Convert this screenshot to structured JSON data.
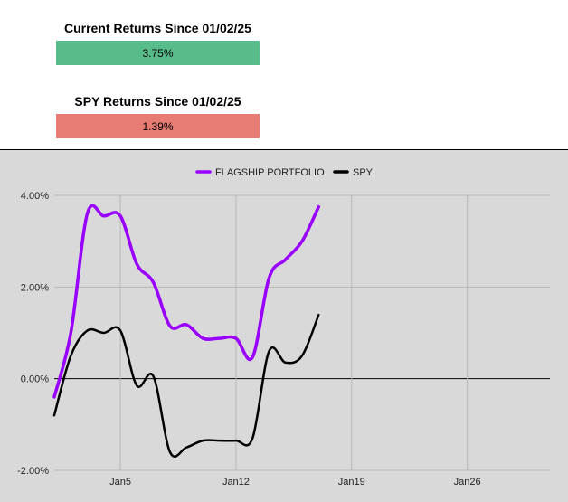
{
  "kpis": {
    "current": {
      "title": "Current Returns Since 01/02/25",
      "value": "3.75%",
      "color": "#57bb8a"
    },
    "spy": {
      "title": "SPY Returns Since 01/02/25",
      "value": "1.39%",
      "color": "#e67c73"
    }
  },
  "chart_data": {
    "type": "line",
    "title": "",
    "xlabel": "",
    "ylabel": "",
    "x_ticks": [
      "Jan5",
      "Jan12",
      "Jan19",
      "Jan26"
    ],
    "y_ticks": [
      "4.00%",
      "2.00%",
      "0.00%",
      "-2.00%"
    ],
    "ylim": [
      -2,
      4
    ],
    "xlim": [
      "2025-01-01",
      "2025-01-31"
    ],
    "grid": true,
    "legend_position": "top-center",
    "series": [
      {
        "name": "FLAGSHIP PORTFOLIO",
        "color": "#9900ff",
        "x": [
          "2025-01-01",
          "2025-01-02",
          "2025-01-03",
          "2025-01-04",
          "2025-01-05",
          "2025-01-06",
          "2025-01-07",
          "2025-01-08",
          "2025-01-09",
          "2025-01-10",
          "2025-01-11",
          "2025-01-12",
          "2025-01-13",
          "2025-01-14",
          "2025-01-15",
          "2025-01-16",
          "2025-01-17"
        ],
        "values": [
          -0.4,
          1.0,
          3.6,
          3.55,
          3.55,
          2.5,
          2.1,
          1.15,
          1.18,
          0.88,
          0.88,
          0.88,
          0.47,
          2.2,
          2.6,
          3.0,
          3.75
        ]
      },
      {
        "name": "SPY",
        "color": "#000000",
        "x": [
          "2025-01-01",
          "2025-01-02",
          "2025-01-03",
          "2025-01-04",
          "2025-01-05",
          "2025-01-06",
          "2025-01-07",
          "2025-01-08",
          "2025-01-09",
          "2025-01-10",
          "2025-01-11",
          "2025-01-12",
          "2025-01-13",
          "2025-01-14",
          "2025-01-15",
          "2025-01-16",
          "2025-01-17"
        ],
        "values": [
          -0.8,
          0.5,
          1.05,
          1.0,
          1.05,
          -0.15,
          0.05,
          -1.6,
          -1.5,
          -1.35,
          -1.35,
          -1.35,
          -1.3,
          0.6,
          0.35,
          0.5,
          1.39
        ]
      }
    ]
  }
}
